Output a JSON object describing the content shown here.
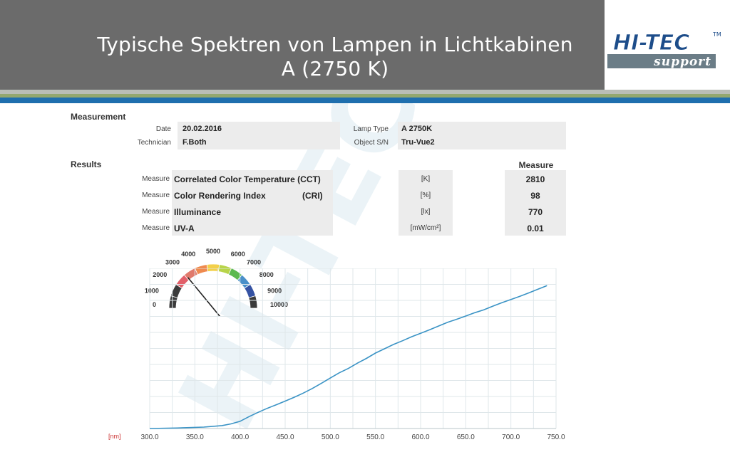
{
  "slide": {
    "title_line1": "Typische Spektren von Lampen in Lichtkabinen",
    "title_line2": "A (2750 K)"
  },
  "logo": {
    "brand": "HI-TEC",
    "tm": "TM",
    "tagline": "support",
    "watermark": "HI-TEC",
    "color_primary": "#1d4d8a",
    "color_secondary": "#6b7d87"
  },
  "measurement": {
    "heading": "Measurement",
    "date_label": "Date",
    "date_value": "20.02.2016",
    "technician_label": "Technician",
    "technician_value": "F.Both",
    "lamp_type_label": "Lamp Type",
    "lamp_type_value": "A 2750K",
    "object_label": "Object S/N",
    "object_value": "Tru-Vue2"
  },
  "results": {
    "heading": "Results",
    "measure_header": "Measure",
    "rows": [
      {
        "prefix": "Measure",
        "name": "Correlated Color Temperature (CCT)",
        "abbr": "",
        "unit": "[K]",
        "value": "2810"
      },
      {
        "prefix": "Measure",
        "name": "Color Rendering Index",
        "abbr": "(CRI)",
        "unit": "[%]",
        "value": "98"
      },
      {
        "prefix": "Measure",
        "name": "Illuminance",
        "abbr": "",
        "unit": "[lx]",
        "value": "770"
      },
      {
        "prefix": "Measure",
        "name": "UV-A",
        "abbr": "",
        "unit": "[mW/cm²]",
        "value": "0.01"
      }
    ]
  },
  "gauge": {
    "labels": [
      "0",
      "1000",
      "2000",
      "3000",
      "4000",
      "5000",
      "6000",
      "7000",
      "8000",
      "9000",
      "10000"
    ],
    "colors": [
      "#3b3b3b",
      "#3b3b3b",
      "#e2606a",
      "#e07a6c",
      "#ef8a4f",
      "#f3d04a",
      "#b8d44a",
      "#5cb94f",
      "#4a90c9",
      "#3552a3",
      "#3b3b3b"
    ],
    "min": 0,
    "max": 10000,
    "value": 2810
  },
  "chart_data": {
    "type": "line",
    "title": "",
    "xlabel": "[nm]",
    "ylabel": "",
    "x_ticks": [
      "300.0",
      "350.0",
      "400.0",
      "450.0",
      "500.0",
      "550.0",
      "600.0",
      "650.0",
      "700.0",
      "750.0"
    ],
    "xlim": [
      300,
      750
    ],
    "ylim": [
      0,
      100
    ],
    "grid": true,
    "line_color": "#3a93c5",
    "series": [
      {
        "x": [
          300,
          330,
          360,
          380,
          390,
          400,
          410,
          420,
          430,
          440,
          450,
          460,
          470,
          480,
          490,
          500,
          510,
          520,
          530,
          540,
          550,
          560,
          570,
          580,
          590,
          600,
          610,
          620,
          630,
          640,
          650,
          660,
          670,
          680,
          690,
          700,
          710,
          720,
          730,
          740
        ],
        "y": [
          0,
          0.3,
          0.9,
          1.8,
          2.9,
          4.5,
          7.4,
          10.1,
          12.6,
          14.8,
          17.1,
          19.5,
          22.1,
          25.0,
          28.2,
          31.5,
          34.8,
          37.5,
          40.8,
          43.8,
          47.1,
          49.8,
          52.5,
          54.8,
          57.3,
          59.4,
          61.7,
          64.0,
          66.3,
          68.2,
          70.2,
          72.3,
          74.1,
          76.4,
          78.6,
          80.6,
          82.6,
          84.7,
          87.0,
          89.2
        ]
      }
    ]
  }
}
